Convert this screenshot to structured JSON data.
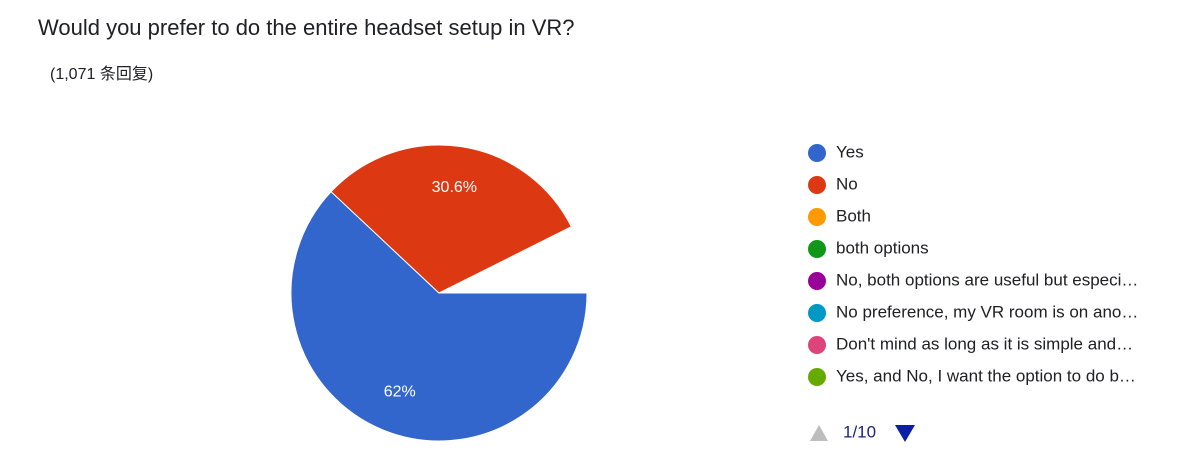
{
  "chart_data": {
    "type": "pie",
    "title": "Would you prefer to do the entire headset setup in VR?",
    "subtitle": "(1,071 条回复)",
    "categories": [
      "Yes",
      "No",
      "Both",
      "both options",
      "No, both options are useful but especi…",
      "No preference, my VR room is on ano…",
      "Don't mind as long as it is simple and…",
      "Yes, and No, I want the option to do b…"
    ],
    "values": [
      62,
      30.6,
      null,
      null,
      null,
      null,
      null,
      null
    ],
    "value_labels": [
      "62%",
      "30.6%",
      null,
      null,
      null,
      null,
      null,
      null
    ],
    "colors": [
      "#3366cc",
      "#dc3912",
      "#ff9900",
      "#109618",
      "#990099",
      "#0099c6",
      "#dd4477",
      "#66aa00"
    ],
    "legend_page": "1/10"
  }
}
